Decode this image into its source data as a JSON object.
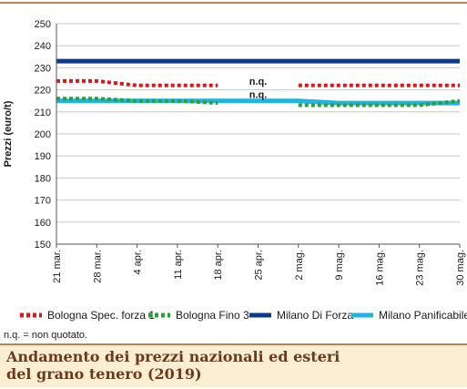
{
  "chart_data": {
    "type": "line",
    "title": "",
    "xlabel": "",
    "ylabel": "Prezzi (euro/t)",
    "ylim": [
      150,
      250
    ],
    "yticks": [
      150,
      160,
      170,
      180,
      190,
      200,
      210,
      220,
      230,
      240,
      250
    ],
    "categories": [
      "21 mar.",
      "28 mar.",
      "4 apr.",
      "11 apr.",
      "18 apr.",
      "25 apr.",
      "2 mag.",
      "9 mag.",
      "16 mag.",
      "23 mag.",
      "30 mag."
    ],
    "grid": "horizontal",
    "legend_position": "bottom",
    "series": [
      {
        "name": "Bologna Spec. forza 1",
        "color": "#d7191c",
        "style": "dotted",
        "values": [
          224,
          224,
          222,
          222,
          222,
          null,
          222,
          222,
          222,
          222,
          222
        ]
      },
      {
        "name": "Bologna Fino 3",
        "color": "#2e9e3a",
        "style": "dotted",
        "values": [
          216,
          216,
          215,
          215,
          214,
          null,
          213,
          213,
          213,
          213,
          215
        ]
      },
      {
        "name": "Milano Di Forza",
        "color": "#0d3b8c",
        "style": "solid",
        "values": [
          233,
          233,
          233,
          233,
          233,
          233,
          233,
          233,
          233,
          233,
          233
        ]
      },
      {
        "name": "Milano Panificabile",
        "color": "#22b4e0",
        "style": "solid",
        "values": [
          215,
          215,
          215,
          215,
          215,
          215,
          215,
          214,
          214,
          214,
          214
        ]
      }
    ],
    "annotations": [
      {
        "text": "n.q.",
        "x": "25 apr.",
        "y": 222
      },
      {
        "text": "n.q.",
        "x": "25 apr.",
        "y": 216
      }
    ]
  },
  "footnote": "n.q. = non quotato.",
  "title_line1": "Andamento dei prezzi nazionali ed esteri",
  "title_line2": "del grano tenero (2019)"
}
